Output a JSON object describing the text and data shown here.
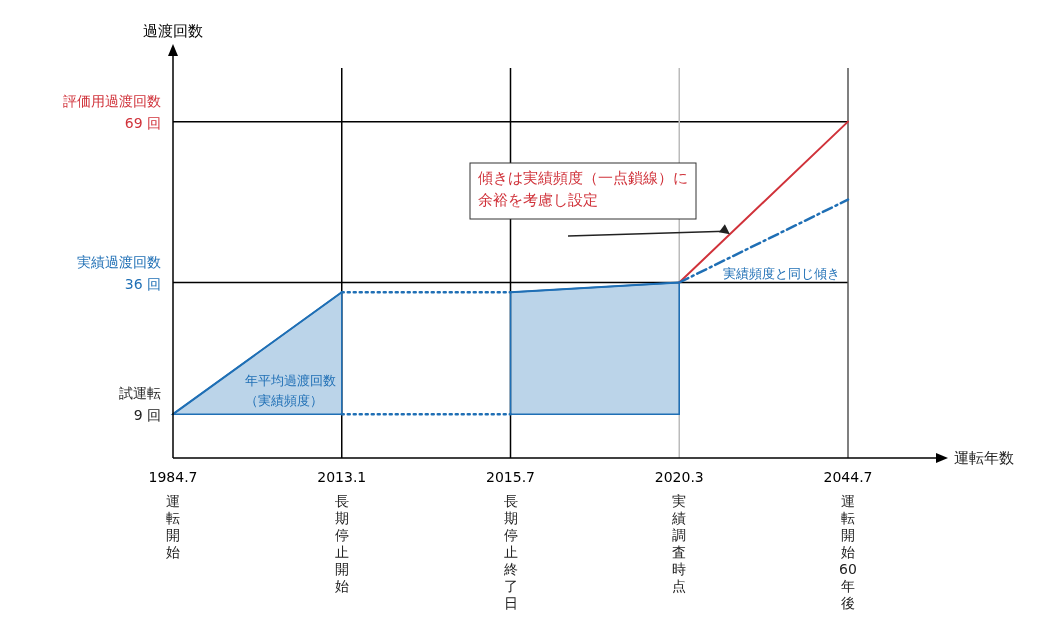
{
  "chart_data": {
    "type": "line",
    "ylabel": "過渡回数",
    "categories": [
      "1984.7",
      "2013.1",
      "2015.7",
      "2020.3",
      "2044.7"
    ],
    "ylim": [
      0,
      80
    ],
    "yticks": [
      {
        "value": 9,
        "label": "9 回"
      },
      {
        "value": 36,
        "label": "36 回"
      },
      {
        "value": 69,
        "label": "69 回"
      }
    ],
    "series": [
      {
        "color": "#1f6fb5",
        "values": [
          9,
          34,
          null,
          null,
          null
        ],
        "lower": [
          9,
          9,
          null,
          null,
          null
        ],
        "upper": [
          9,
          34,
          null,
          null,
          null
        ]
      },
      {
        "color": "#1f6fb5",
        "values": [
          null,
          null,
          34,
          36,
          null
        ],
        "lower": [
          null,
          null,
          9,
          9,
          null
        ],
        "upper": [
          null,
          null,
          34,
          36,
          null
        ]
      },
      {
        "color": "#1f6fb5",
        "line_style": "dotted",
        "values": [
          null,
          34,
          34,
          null,
          null
        ]
      },
      {
        "color": "#1f6fb5",
        "line_style": "dotted",
        "values": [
          null,
          9,
          9,
          null,
          null
        ]
      },
      {
        "color": "#d0323a",
        "values": [
          null,
          null,
          null,
          36,
          69
        ]
      },
      {
        "color": "#1f6fb5",
        "line_style": "dashed",
        "values": [
          null,
          null,
          null,
          36,
          53
        ]
      }
    ],
    "ref_lines": [
      {
        "axis": "y",
        "value": 36,
        "color": "#000000",
        "label": "実績過渡回数"
      },
      {
        "axis": "y",
        "value": 69,
        "color": "#000000",
        "label": "評価用過渡回数"
      },
      {
        "axis": "x",
        "value": "2013.1",
        "color": "#000000"
      },
      {
        "axis": "x",
        "value": "2015.7",
        "color": "#000000"
      },
      {
        "axis": "x",
        "value": "2020.3",
        "color": "#bbbbbb"
      },
      {
        "axis": "x",
        "value": "2044.7",
        "color": "#555555"
      }
    ],
    "annotations": [
      "傾きは実績頻度（一点鎖線）に余裕を考慮し設定",
      "実績頻度と同じ傾き",
      "年平均過渡回数（実績頻度）",
      "試運転",
      "運転開始",
      "長期停止開始",
      "長期停止終了日",
      "実績調査時点",
      "運転開始60年後",
      "運転年数"
    ]
  }
}
